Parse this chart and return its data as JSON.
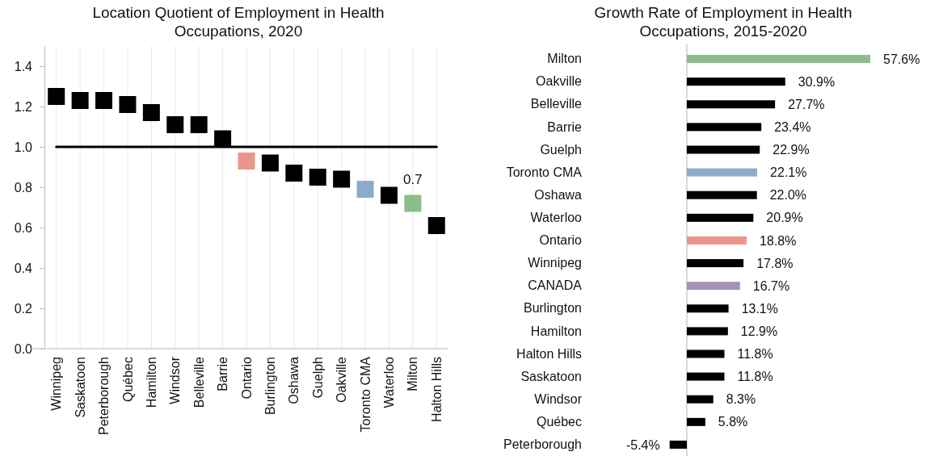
{
  "chart_data": [
    {
      "type": "scatter",
      "title": "Location Quotient of Employment in Health Occupations, 2020",
      "marker": "square",
      "grid": "x",
      "categories": [
        "Winnipeg",
        "Saskatoon",
        "Peterborough",
        "Québec",
        "Hamilton",
        "Windsor",
        "Belleville",
        "Barrie",
        "Ontario",
        "Burlington",
        "Oshawa",
        "Guelph",
        "Oakville",
        "Toronto CMA",
        "Waterloo",
        "Milton",
        "Halton Hills"
      ],
      "values": [
        1.25,
        1.23,
        1.23,
        1.21,
        1.17,
        1.11,
        1.11,
        1.04,
        0.93,
        0.92,
        0.87,
        0.85,
        0.84,
        0.79,
        0.76,
        0.72,
        0.61
      ],
      "colors": [
        "#000000",
        "#000000",
        "#000000",
        "#000000",
        "#000000",
        "#000000",
        "#000000",
        "#000000",
        "#eb968a",
        "#000000",
        "#000000",
        "#000000",
        "#000000",
        "#8eaacb",
        "#000000",
        "#8cbb8c",
        "#000000"
      ],
      "value_labels": [
        null,
        null,
        null,
        null,
        null,
        null,
        null,
        null,
        null,
        null,
        null,
        null,
        null,
        null,
        null,
        "0.7",
        null
      ],
      "ylim": [
        0,
        1.5
      ],
      "yticks": [
        {
          "value": 0,
          "label": "0.0"
        },
        {
          "value": 0.2,
          "label": "0.2"
        },
        {
          "value": 0.4,
          "label": "0.4"
        },
        {
          "value": 0.6,
          "label": "0.6"
        },
        {
          "value": 0.8,
          "label": "0.8"
        },
        {
          "value": 1,
          "label": "1.0"
        },
        {
          "value": 1.2,
          "label": "1.2"
        },
        {
          "value": 1.4,
          "label": "1.4"
        }
      ],
      "ref_lines": [
        {
          "axis": "y",
          "value": 1.0,
          "color": "#000000"
        }
      ]
    },
    {
      "type": "bar",
      "orientation": "horizontal",
      "title": "Growth Rate of Employment in Health Occupations, 2015-2020",
      "categories": [
        "Milton",
        "Oakville",
        "Belleville",
        "Barrie",
        "Guelph",
        "Toronto CMA",
        "Oshawa",
        "Waterloo",
        "Ontario",
        "Winnipeg",
        "CANADA",
        "Burlington",
        "Hamilton",
        "Halton Hills",
        "Saskatoon",
        "Windsor",
        "Québec",
        "Peterborough"
      ],
      "values": [
        57.6,
        30.9,
        27.7,
        23.4,
        22.9,
        22.1,
        22.0,
        20.9,
        18.8,
        17.8,
        16.7,
        13.1,
        12.9,
        11.8,
        11.8,
        8.3,
        5.8,
        -5.4
      ],
      "colors": [
        "#8cbb8c",
        "#000000",
        "#000000",
        "#000000",
        "#000000",
        "#8eaacb",
        "#000000",
        "#000000",
        "#eb968a",
        "#000000",
        "#a593b8",
        "#000000",
        "#000000",
        "#000000",
        "#000000",
        "#000000",
        "#000000",
        "#000000"
      ],
      "value_labels": [
        "57.6%",
        "30.9%",
        "27.7%",
        "23.4%",
        "22.9%",
        "22.1%",
        "22.0%",
        "20.9%",
        "18.8%",
        "17.8%",
        "16.7%",
        "13.1%",
        "12.9%",
        "11.8%",
        "11.8%",
        "8.3%",
        "5.8%",
        "-5.4%"
      ]
    }
  ]
}
